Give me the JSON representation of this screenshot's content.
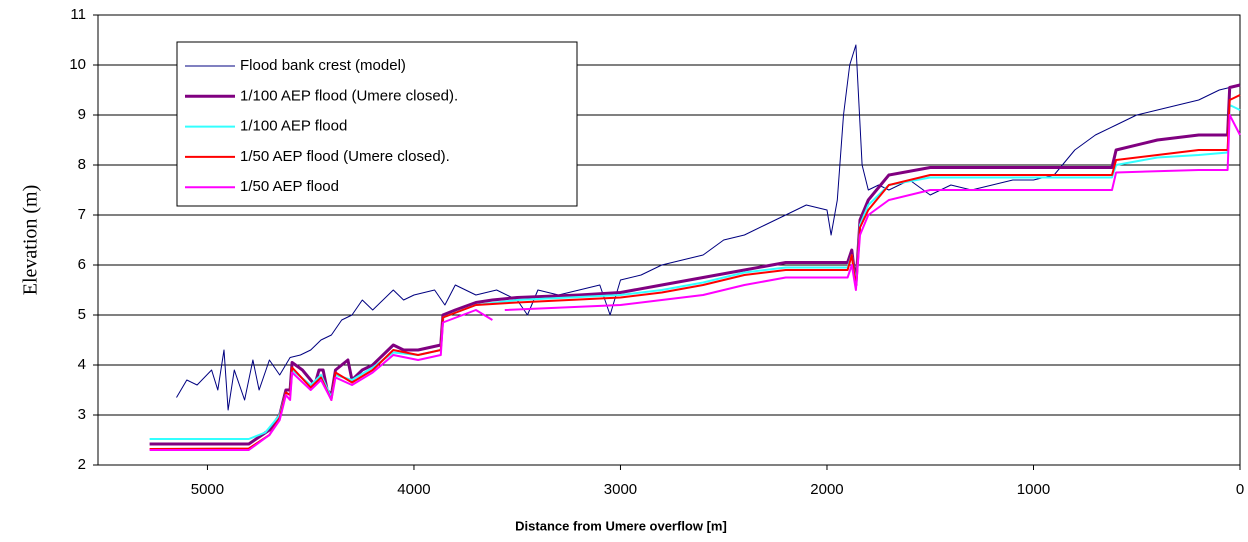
{
  "chart_data": {
    "type": "line",
    "xlabel": "Distance from Umere overflow [m]",
    "ylabel": "Elevation (m)",
    "xlim": [
      5530,
      0
    ],
    "xticks": [
      5000,
      4000,
      3000,
      2000,
      1000,
      0
    ],
    "ylim": [
      2,
      11
    ],
    "yticks": [
      2,
      3,
      4,
      5,
      6,
      7,
      8,
      9,
      10,
      11
    ],
    "grid": true,
    "legend": "upper left",
    "series": [
      {
        "name": "Flood bank crest (model)",
        "color": "#000080",
        "width": 1,
        "x": [
          5150,
          5100,
          5050,
          4980,
          4950,
          4920,
          4900,
          4870,
          4820,
          4780,
          4750,
          4700,
          4650,
          4600,
          4550,
          4500,
          4450,
          4400,
          4350,
          4300,
          4250,
          4200,
          4100,
          4050,
          4000,
          3900,
          3850,
          3800,
          3700,
          3600,
          3500,
          3450,
          3400,
          3300,
          3200,
          3100,
          3050,
          3000,
          2900,
          2800,
          2700,
          2600,
          2500,
          2400,
          2300,
          2200,
          2100,
          2000,
          1980,
          1950,
          1920,
          1890,
          1860,
          1830,
          1800,
          1750,
          1700,
          1600,
          1500,
          1400,
          1300,
          1200,
          1100,
          1000,
          900,
          800,
          700,
          600,
          500,
          400,
          300,
          200,
          100,
          50,
          0
        ],
        "values": [
          3.35,
          3.7,
          3.6,
          3.9,
          3.5,
          4.3,
          3.1,
          3.9,
          3.3,
          4.1,
          3.5,
          4.1,
          3.8,
          4.15,
          4.2,
          4.3,
          4.5,
          4.6,
          4.9,
          5.0,
          5.3,
          5.1,
          5.5,
          5.3,
          5.4,
          5.5,
          5.2,
          5.6,
          5.4,
          5.5,
          5.3,
          5.0,
          5.5,
          5.4,
          5.5,
          5.6,
          5.0,
          5.7,
          5.8,
          6.0,
          6.1,
          6.2,
          6.5,
          6.6,
          6.8,
          7.0,
          7.2,
          7.1,
          6.6,
          7.3,
          9.0,
          10.0,
          10.4,
          8.0,
          7.5,
          7.6,
          7.5,
          7.7,
          7.4,
          7.6,
          7.5,
          7.6,
          7.7,
          7.7,
          7.8,
          8.3,
          8.6,
          8.8,
          9.0,
          9.1,
          9.2,
          9.3,
          9.5,
          9.55,
          9.6
        ]
      },
      {
        "name": "1/100 AEP flood (Umere closed).",
        "color": "#800080",
        "width": 3,
        "x": [
          5280,
          4800,
          4700,
          4650,
          4620,
          4600,
          4590,
          4540,
          4500,
          4480,
          4460,
          4440,
          4420,
          4400,
          4380,
          4350,
          4320,
          4300,
          4250,
          4200,
          4150,
          4100,
          4050,
          3980,
          3870,
          3860,
          3800,
          3700,
          3620,
          3500,
          3200,
          3000,
          2800,
          2600,
          2400,
          2200,
          1900,
          1880,
          1860,
          1840,
          1800,
          1700,
          1500,
          1300,
          1000,
          620,
          600,
          400,
          200,
          60,
          50,
          0
        ],
        "values": [
          2.42,
          2.42,
          2.7,
          3.0,
          3.5,
          3.5,
          4.05,
          3.9,
          3.7,
          3.6,
          3.9,
          3.9,
          3.5,
          3.4,
          3.9,
          4.0,
          4.1,
          3.7,
          3.9,
          4.0,
          4.2,
          4.4,
          4.3,
          4.3,
          4.4,
          5.0,
          5.1,
          5.25,
          5.3,
          5.35,
          5.4,
          5.45,
          5.6,
          5.75,
          5.9,
          6.05,
          6.05,
          6.3,
          5.6,
          6.9,
          7.3,
          7.8,
          7.95,
          7.95,
          7.95,
          7.95,
          8.3,
          8.5,
          8.6,
          8.6,
          9.55,
          9.6
        ]
      },
      {
        "name": "1/100 AEP flood",
        "color": "#33ffff",
        "width": 2,
        "x": [
          5280,
          4800,
          4720,
          4650,
          4620,
          4600,
          4590,
          4500,
          4450,
          4400,
          4380,
          4300,
          4200,
          4100,
          3980,
          3870,
          3860,
          3700,
          3500,
          3000,
          2800,
          2600,
          2400,
          2200,
          1900,
          1880,
          1860,
          1840,
          1800,
          1700,
          1500,
          1000,
          620,
          600,
          400,
          200,
          60,
          50,
          0
        ],
        "values": [
          2.52,
          2.52,
          2.65,
          3.0,
          3.45,
          3.4,
          3.9,
          3.6,
          3.8,
          3.35,
          3.8,
          3.7,
          3.95,
          4.25,
          4.2,
          4.3,
          4.95,
          5.2,
          5.3,
          5.4,
          5.5,
          5.65,
          5.85,
          5.95,
          5.95,
          6.2,
          5.6,
          6.8,
          7.2,
          7.6,
          7.75,
          7.75,
          7.75,
          8.0,
          8.15,
          8.2,
          8.25,
          9.2,
          9.1
        ]
      },
      {
        "name": "1/50 AEP flood (Umere closed).",
        "color": "#ff0000",
        "width": 2,
        "x": [
          5280,
          4800,
          4700,
          4650,
          4620,
          4600,
          4590,
          4500,
          4450,
          4400,
          4380,
          4300,
          4200,
          4100,
          3980,
          3870,
          3860,
          3700,
          3500,
          3000,
          2800,
          2600,
          2400,
          2200,
          1900,
          1880,
          1860,
          1840,
          1800,
          1700,
          1500,
          1000,
          620,
          600,
          400,
          200,
          60,
          50,
          0
        ],
        "values": [
          2.32,
          2.33,
          2.6,
          2.95,
          3.45,
          3.4,
          3.95,
          3.55,
          3.75,
          3.3,
          3.85,
          3.65,
          3.9,
          4.3,
          4.2,
          4.3,
          4.95,
          5.2,
          5.25,
          5.35,
          5.45,
          5.6,
          5.8,
          5.9,
          5.9,
          6.2,
          5.55,
          6.75,
          7.1,
          7.6,
          7.8,
          7.8,
          7.8,
          8.1,
          8.2,
          8.3,
          8.3,
          9.3,
          9.4
        ]
      },
      {
        "name": "1/50 AEP flood",
        "color": "#ff00ff",
        "width": 2,
        "x": [
          5280,
          4800,
          4700,
          4650,
          4620,
          4600,
          4590,
          4500,
          4450,
          4400,
          4380,
          4300,
          4200,
          4100,
          3980,
          3870,
          3860,
          3700,
          3620,
          3590,
          3560,
          3000,
          2800,
          2600,
          2400,
          2200,
          1900,
          1880,
          1860,
          1840,
          1800,
          1700,
          1500,
          1000,
          620,
          600,
          200,
          60,
          50,
          0
        ],
        "values": [
          2.3,
          2.3,
          2.6,
          2.9,
          3.4,
          3.3,
          3.85,
          3.5,
          3.7,
          3.3,
          3.75,
          3.6,
          3.85,
          4.2,
          4.1,
          4.2,
          4.85,
          5.1,
          4.9,
          null,
          5.1,
          5.2,
          5.3,
          5.4,
          5.6,
          5.75,
          5.75,
          6.0,
          5.5,
          6.6,
          7.0,
          7.3,
          7.5,
          7.5,
          7.5,
          7.85,
          7.9,
          7.9,
          9.0,
          8.6
        ]
      }
    ]
  }
}
